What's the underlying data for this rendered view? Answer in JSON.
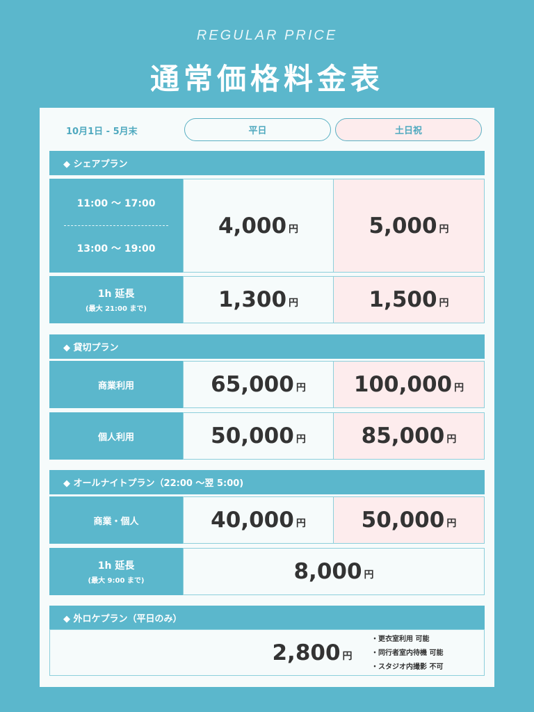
{
  "header": {
    "subtitle": "REGULAR PRICE",
    "title": "通常価格料金表"
  },
  "period": "10月1日 - 5月末",
  "columns": {
    "weekday": "平日",
    "holiday": "土日祝"
  },
  "yen": "円",
  "share": {
    "title": "◆ シェアプラン",
    "time1": "11:00 〜 17:00",
    "time2": "13:00 〜 19:00",
    "weekday": "4,000",
    "holiday": "5,000",
    "ext_label": "1h 延長",
    "ext_note": "(最大 21:00 まで)",
    "ext_weekday": "1,300",
    "ext_holiday": "1,500"
  },
  "private": {
    "title": "◆ 貸切プラン",
    "rows": [
      {
        "label": "商業利用",
        "weekday": "65,000",
        "holiday": "100,000"
      },
      {
        "label": "個人利用",
        "weekday": "50,000",
        "holiday": "85,000"
      }
    ]
  },
  "allnight": {
    "title": "◆ オールナイトプラン（22:00 〜翌 5:00)",
    "label": "商業・個人",
    "weekday": "40,000",
    "holiday": "50,000",
    "ext_label": "1h 延長",
    "ext_note": "(最大 9:00 まで)",
    "ext_price": "8,000"
  },
  "location": {
    "title": "◆ 外ロケプラン（平日のみ）",
    "price": "2,800",
    "notes": [
      "・更衣室利用 可能",
      "・同行者室内待機 可能",
      "・スタジオ内撮影 不可"
    ]
  },
  "colors": {
    "background": "#5bb7cc",
    "holiday": "#fdeced",
    "text": "#333333"
  }
}
